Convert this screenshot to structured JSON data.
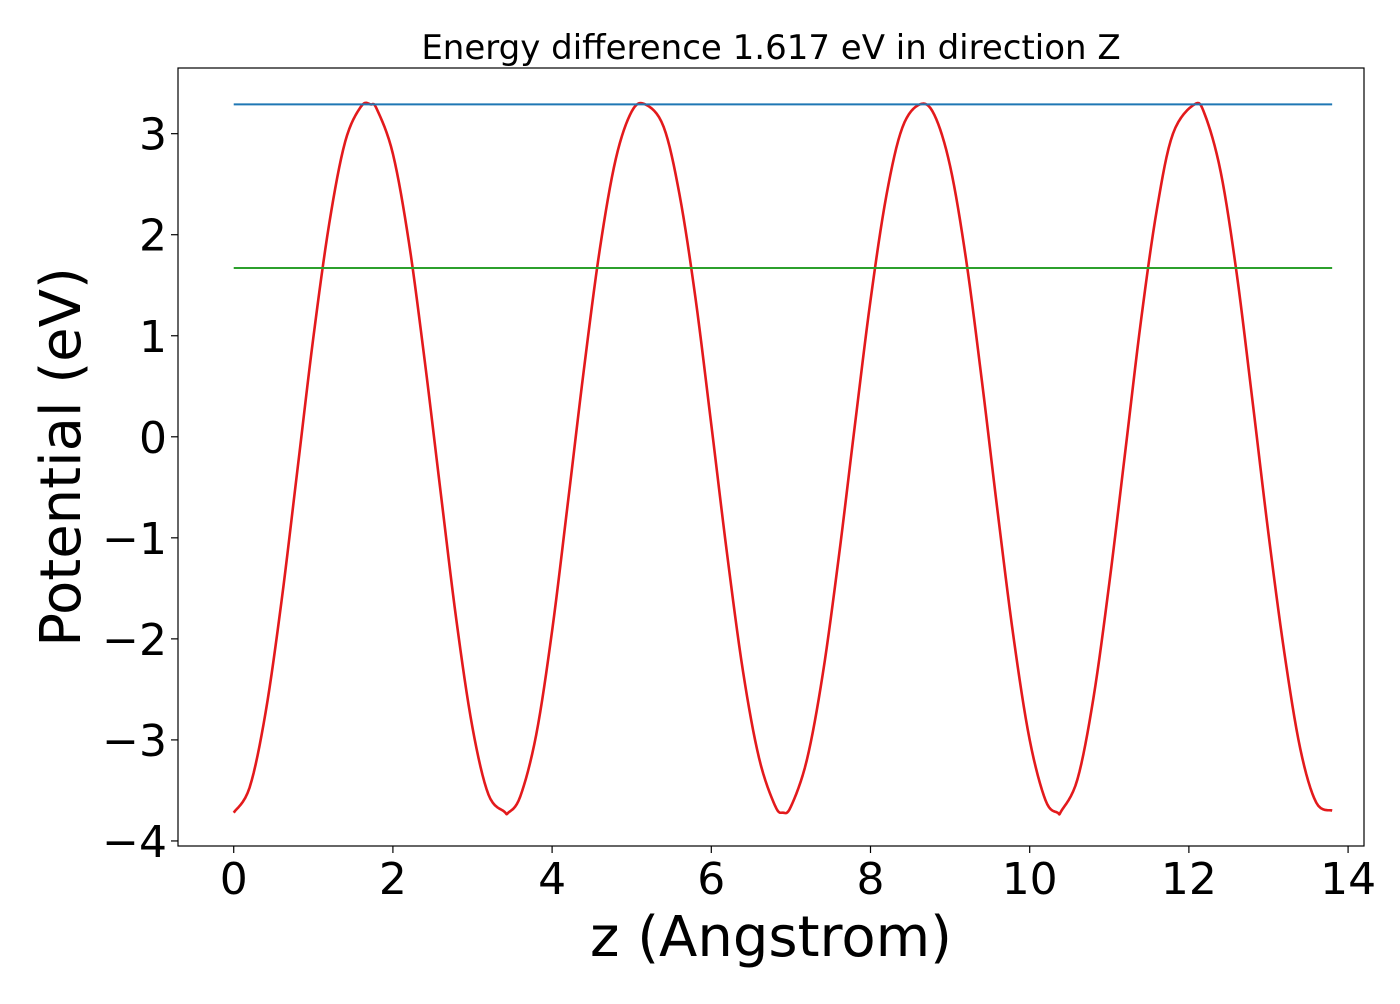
{
  "chart_data": {
    "type": "line",
    "title": "Energy difference 1.617 eV in direction Z",
    "xlabel": "z (Angstrom)",
    "ylabel": "Potential (eV)",
    "xlim": [
      -0.7,
      14.2
    ],
    "ylim": [
      -4.05,
      3.65
    ],
    "x_ticks": [
      0,
      2,
      4,
      6,
      8,
      10,
      12,
      14
    ],
    "x_tick_labels": [
      "0",
      "2",
      "4",
      "6",
      "8",
      "10",
      "12",
      "14"
    ],
    "y_ticks": [
      -4,
      -3,
      -2,
      -1,
      0,
      1,
      2,
      3
    ],
    "y_tick_labels": [
      "−4",
      "−3",
      "−2",
      "−1",
      "0",
      "1",
      "2",
      "3"
    ],
    "grid": false,
    "legend": "none",
    "series": [
      {
        "color": "#e31a1c",
        "kind": "curve",
        "x": [
          0.0,
          0.2,
          0.4,
          0.6,
          0.8,
          1.0,
          1.2,
          1.4,
          1.6,
          1.72,
          1.8,
          2.0,
          2.2,
          2.4,
          2.6,
          2.8,
          3.0,
          3.2,
          3.4,
          3.45,
          3.6,
          3.8,
          4.0,
          4.2,
          4.4,
          4.6,
          4.8,
          5.0,
          5.17,
          5.4,
          5.6,
          5.8,
          6.0,
          6.2,
          6.4,
          6.6,
          6.8,
          6.9,
          7.0,
          7.2,
          7.4,
          7.6,
          7.8,
          8.0,
          8.2,
          8.4,
          8.62,
          8.8,
          9.0,
          9.2,
          9.4,
          9.6,
          9.8,
          10.0,
          10.2,
          10.35,
          10.4,
          10.6,
          10.8,
          11.0,
          11.2,
          11.4,
          11.6,
          11.8,
          12.07,
          12.2,
          12.4,
          12.6,
          12.8,
          13.0,
          13.2,
          13.4,
          13.6,
          13.8
        ],
        "y": [
          -3.72,
          -3.47,
          -2.73,
          -1.63,
          -0.33,
          0.98,
          2.11,
          2.92,
          3.27,
          3.29,
          3.24,
          2.8,
          1.93,
          0.75,
          -0.55,
          -1.83,
          -2.88,
          -3.54,
          -3.71,
          -3.72,
          -3.56,
          -2.95,
          -1.92,
          -0.64,
          0.67,
          1.86,
          2.75,
          3.22,
          3.29,
          3.07,
          2.4,
          1.38,
          0.12,
          -1.17,
          -2.33,
          -3.18,
          -3.65,
          -3.72,
          -3.66,
          -3.2,
          -2.35,
          -1.2,
          0.09,
          1.35,
          2.39,
          3.06,
          3.29,
          3.19,
          2.68,
          1.76,
          0.55,
          -0.76,
          -2.0,
          -3.0,
          -3.6,
          -3.72,
          -3.7,
          -3.39,
          -2.59,
          -1.45,
          -0.15,
          1.16,
          2.26,
          3.0,
          3.29,
          3.19,
          2.62,
          1.62,
          0.35,
          -0.96,
          -2.14,
          -3.09,
          -3.62,
          -3.7
        ]
      },
      {
        "color": "#1f77b4",
        "kind": "hline",
        "x": [
          0.0,
          13.8
        ],
        "y": [
          3.29,
          3.29
        ]
      },
      {
        "color": "#2ca02c",
        "kind": "hline",
        "x": [
          0.0,
          13.8
        ],
        "y": [
          1.67,
          1.67
        ]
      }
    ]
  }
}
